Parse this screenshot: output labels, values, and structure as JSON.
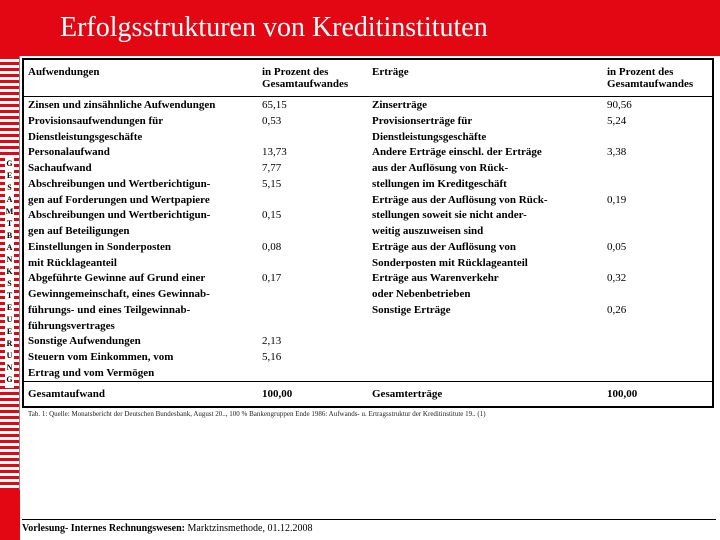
{
  "colors": {
    "red": "#e30613",
    "white": "#ffffff",
    "black": "#000000"
  },
  "header": {
    "title": "Erfolgsstrukturen von Kreditinstituten"
  },
  "sidebar": {
    "label": "GESAMTBANKSTEUERUNG"
  },
  "table": {
    "headers": {
      "expenses": "Aufwendungen",
      "pct": "in Prozent des Gesamtaufwandes",
      "income": "Erträge"
    },
    "rows": [
      {
        "exp": "Zinsen und zinsähnliche Aufwendungen",
        "expPct": "65,15",
        "inc": "Zinserträge",
        "incPct": "90,56"
      },
      {
        "exp": "Provisionsaufwendungen für",
        "expPct": "0,53",
        "inc": "Provisionserträge für",
        "incPct": "5,24"
      },
      {
        "exp": " Dienstleistungsgeschäfte",
        "expPct": "",
        "inc": " Dienstleistungsgeschäfte",
        "incPct": ""
      },
      {
        "exp": "Personalaufwand",
        "expPct": "13,73",
        "inc": "Andere Erträge einschl. der Erträge",
        "incPct": "3,38"
      },
      {
        "exp": "Sachaufwand",
        "expPct": "7,77",
        "inc": " aus der Auflösung von Rück-",
        "incPct": ""
      },
      {
        "exp": "Abschreibungen und Wertberichtigun-",
        "expPct": "5,15",
        "inc": " stellungen im Kreditgeschäft",
        "incPct": ""
      },
      {
        "exp": " gen auf Forderungen und Wertpapiere",
        "expPct": "",
        "inc": "Erträge aus der Auflösung von Rück-",
        "incPct": "0,19"
      },
      {
        "exp": "Abschreibungen und Wertberichtigun-",
        "expPct": "0,15",
        "inc": " stellungen soweit sie nicht ander-",
        "incPct": ""
      },
      {
        "exp": " gen auf Beteiligungen",
        "expPct": "",
        "inc": " weitig auszuweisen sind",
        "incPct": ""
      },
      {
        "exp": "Einstellungen in Sonderposten",
        "expPct": "0,08",
        "inc": "Erträge aus der Auflösung von",
        "incPct": "0,05"
      },
      {
        "exp": " mit Rücklageanteil",
        "expPct": "",
        "inc": " Sonderposten mit Rücklageanteil",
        "incPct": ""
      },
      {
        "exp": "Abgeführte Gewinne auf Grund einer",
        "expPct": "0,17",
        "inc": "Erträge aus Warenverkehr",
        "incPct": "0,32"
      },
      {
        "exp": " Gewinngemeinschaft, eines Gewinnab-",
        "expPct": "",
        "inc": " oder Nebenbetrieben",
        "incPct": ""
      },
      {
        "exp": " führungs- und eines Teilgewinnab-",
        "expPct": "",
        "inc": "Sonstige Erträge",
        "incPct": "0,26"
      },
      {
        "exp": " führungsvertrages",
        "expPct": "",
        "inc": "",
        "incPct": ""
      },
      {
        "exp": "Sonstige Aufwendungen",
        "expPct": "2,13",
        "inc": "",
        "incPct": ""
      },
      {
        "exp": "Steuern vom Einkommen, vom",
        "expPct": "5,16",
        "inc": "",
        "incPct": ""
      },
      {
        "exp": " Ertrag und vom Vermögen",
        "expPct": "",
        "inc": "",
        "incPct": ""
      }
    ],
    "totals": {
      "expLabel": "Gesamtaufwand",
      "expPct": "100,00",
      "incLabel": "Gesamterträge",
      "incPct": "100,00"
    },
    "caption": "Tab. 1: Quelle: Monatsbericht der Deutschen Bundesbank, August 20.., 100 % Bankengruppen Ende 1986: Aufwands- u. Ertragsstruktur der Kreditinstitute 19.. (1)"
  },
  "footer": {
    "lecture": "Vorlesung- Internes Rechnungswesen:",
    "topic": " Marktzinsmethode, 01.12.2008"
  }
}
